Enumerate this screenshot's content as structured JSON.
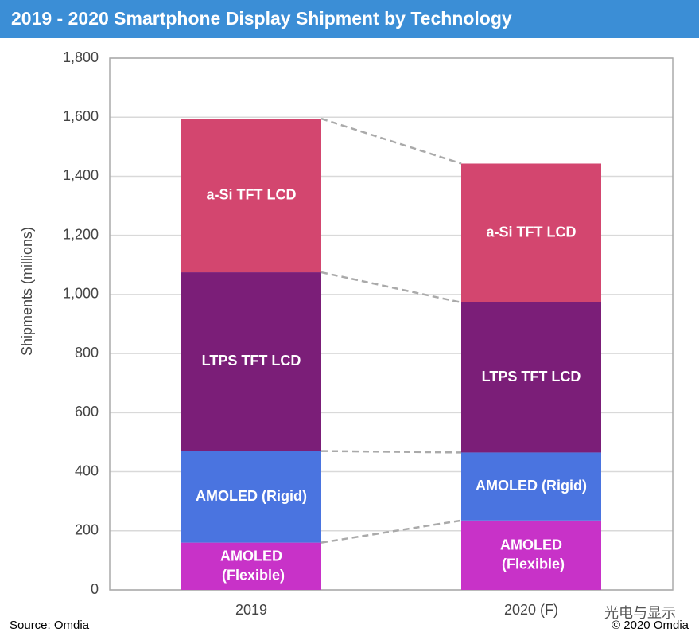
{
  "chart_data": {
    "type": "stacked-bar",
    "title": "2019 - 2020 Smartphone Display Shipment by Technology",
    "y_label": "Shipments (millions)",
    "categories": [
      "2019",
      "2020 (F)"
    ],
    "series": [
      {
        "name": "AMOLED (Flexible)",
        "color": "#c832c8",
        "values": [
          160,
          235
        ]
      },
      {
        "name": "AMOLED (Rigid)",
        "color": "#4a74e0",
        "values": [
          310,
          230
        ]
      },
      {
        "name": "LTPS TFT LCD",
        "color": "#7b1e78",
        "values": [
          605,
          508
        ]
      },
      {
        "name": "a-Si TFT LCD",
        "color": "#d3466f",
        "values": [
          520,
          470
        ]
      }
    ],
    "ylim": [
      0,
      1800
    ],
    "yticks": [
      0,
      {
        "value": 200,
        "label": "200"
      },
      400,
      600,
      800,
      {
        "value": 1000,
        "label": "1,000"
      },
      {
        "value": 1200,
        "label": "1,200"
      },
      {
        "value": 1400,
        "label": "1,400"
      },
      {
        "value": 1600,
        "label": "1,600"
      },
      {
        "value": 1800,
        "label": "1,800"
      }
    ],
    "grid": true,
    "source": "Source: Omdia",
    "copyright": "© 2020 Omdia",
    "watermark": "光电与显示"
  }
}
